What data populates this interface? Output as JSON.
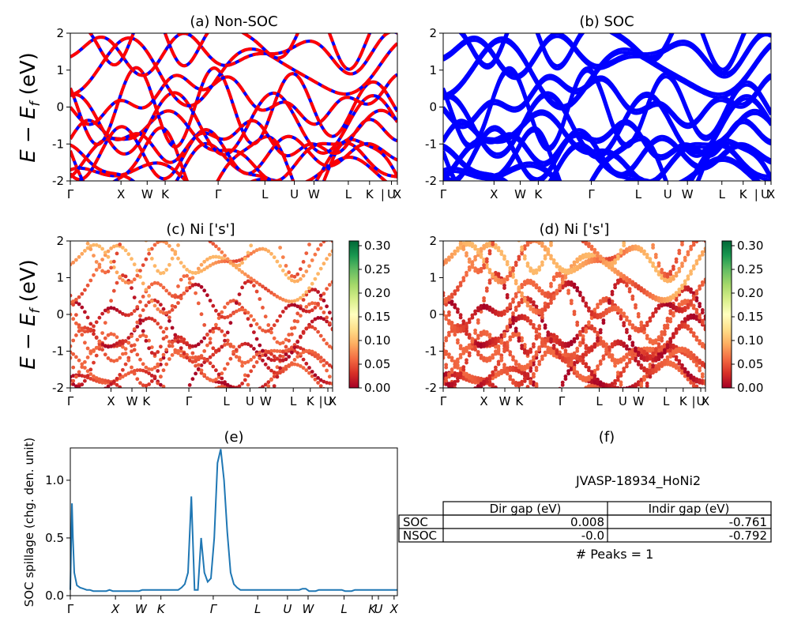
{
  "chart_data": [
    {
      "id": "a",
      "type": "line",
      "title": "(a) Non-SOC",
      "ylabel": "E − E_f (eV)",
      "ylim": [
        -2,
        2
      ],
      "yticks": [
        -2,
        -1,
        0,
        1,
        2
      ],
      "kpath": [
        "Γ",
        "X",
        "W",
        "K",
        "Γ",
        "L",
        "U",
        "W",
        "L",
        "K",
        "|",
        "U",
        "X"
      ],
      "series": [
        {
          "style": "blue solid under red dashed",
          "color": "#0000ff"
        },
        {
          "style": "red dashed",
          "color": "#ff0000"
        }
      ]
    },
    {
      "id": "b",
      "type": "line",
      "title": "(b) SOC",
      "ylim": [
        -2,
        2
      ],
      "yticks": [
        -2,
        -1,
        0,
        1,
        2
      ],
      "kpath": [
        "Γ",
        "X",
        "W",
        "K",
        "Γ",
        "L",
        "U",
        "W",
        "L",
        "K",
        "|",
        "U",
        "X"
      ],
      "series": [
        {
          "color": "#0000ff"
        }
      ]
    },
    {
      "id": "c",
      "type": "scatter",
      "title": "(c)  Ni ['s']",
      "ylabel": "E − E_f (eV)",
      "ylim": [
        -2,
        2
      ],
      "yticks": [
        -2,
        -1,
        0,
        1,
        2
      ],
      "kpath": [
        "Γ",
        "X",
        "W",
        "K",
        "Γ",
        "L",
        "U",
        "W",
        "L",
        "K",
        "|",
        "U",
        "X"
      ],
      "colorbar": {
        "ticks": [
          "0.00",
          "0.05",
          "0.10",
          "0.15",
          "0.20",
          "0.25",
          "0.30"
        ],
        "range": [
          0,
          0.31
        ],
        "colormap": "RdYlGn"
      }
    },
    {
      "id": "d",
      "type": "scatter",
      "title": "(d) Ni ['s']",
      "ylim": [
        -2,
        2
      ],
      "yticks": [
        -2,
        -1,
        0,
        1,
        2
      ],
      "kpath": [
        "Γ",
        "X",
        "W",
        "K",
        "Γ",
        "L",
        "U",
        "W",
        "L",
        "K",
        "|",
        "U",
        "X"
      ],
      "colorbar": {
        "ticks": [
          "0.00",
          "0.05",
          "0.10",
          "0.15",
          "0.20",
          "0.25",
          "0.30"
        ],
        "range": [
          0,
          0.31
        ],
        "colormap": "RdYlGn"
      }
    },
    {
      "id": "e",
      "type": "line",
      "title": "(e)",
      "ylabel": "SOC spillage (chg. den. unit)",
      "ylim": [
        0,
        1.28
      ],
      "yticks": [
        "0.0",
        "0.5",
        "1.0"
      ],
      "xlabels": [
        "Γ",
        "X",
        "W",
        "K",
        "Γ",
        "L",
        "U",
        "W",
        "L",
        "K",
        "U",
        "X"
      ],
      "color": "#1f77b4",
      "x": [
        0,
        0.5,
        0.8,
        1.2,
        2,
        3,
        4,
        5,
        6,
        7,
        8,
        9,
        10,
        11,
        12,
        13,
        14,
        15,
        16,
        17,
        18,
        19,
        20,
        21,
        22,
        23,
        24,
        25,
        26,
        27,
        28,
        29,
        30,
        31,
        32,
        33,
        34,
        35,
        36,
        37,
        38,
        39,
        40,
        41,
        42,
        43,
        44,
        45,
        46,
        47,
        48,
        49,
        50,
        51,
        52,
        53,
        54,
        55,
        56,
        57,
        58,
        59,
        60,
        61,
        62,
        63,
        64,
        65,
        66,
        67,
        68,
        69,
        70,
        71,
        72,
        73,
        74,
        75,
        76,
        77,
        78,
        79,
        80,
        81,
        82,
        83,
        84,
        85,
        86,
        87,
        88,
        89,
        90,
        91,
        92,
        93,
        94,
        95,
        96,
        97,
        98,
        99,
        100
      ],
      "y": [
        0.05,
        0.8,
        0.5,
        0.2,
        0.09,
        0.07,
        0.06,
        0.05,
        0.05,
        0.04,
        0.04,
        0.04,
        0.04,
        0.04,
        0.05,
        0.04,
        0.04,
        0.04,
        0.04,
        0.04,
        0.04,
        0.04,
        0.04,
        0.04,
        0.05,
        0.05,
        0.05,
        0.05,
        0.05,
        0.05,
        0.05,
        0.05,
        0.05,
        0.05,
        0.05,
        0.05,
        0.07,
        0.1,
        0.2,
        0.86,
        0.05,
        0.05,
        0.5,
        0.2,
        0.12,
        0.15,
        0.5,
        1.15,
        1.27,
        1.0,
        0.55,
        0.2,
        0.1,
        0.07,
        0.05,
        0.05,
        0.05,
        0.05,
        0.05,
        0.05,
        0.05,
        0.05,
        0.05,
        0.05,
        0.05,
        0.05,
        0.05,
        0.05,
        0.05,
        0.05,
        0.05,
        0.05,
        0.05,
        0.06,
        0.06,
        0.04,
        0.04,
        0.04,
        0.05,
        0.05,
        0.05,
        0.05,
        0.05,
        0.05,
        0.05,
        0.05,
        0.04,
        0.04,
        0.04,
        0.05,
        0.05,
        0.05,
        0.05,
        0.05,
        0.05,
        0.05,
        0.05,
        0.05,
        0.05,
        0.05,
        0.05,
        0.05,
        0.05
      ]
    },
    {
      "id": "f",
      "type": "table",
      "title": "(f)",
      "subtitle": "JVASP-18934_HoNi2",
      "columns": [
        "Dir gap (eV)",
        "Indir gap (eV)"
      ],
      "rows": [
        {
          "label": "SOC",
          "values": [
            "0.008",
            "-0.761"
          ]
        },
        {
          "label": "NSOC",
          "values": [
            "-0.0",
            "-0.792"
          ]
        }
      ],
      "footer": "# Peaks = 1"
    }
  ]
}
